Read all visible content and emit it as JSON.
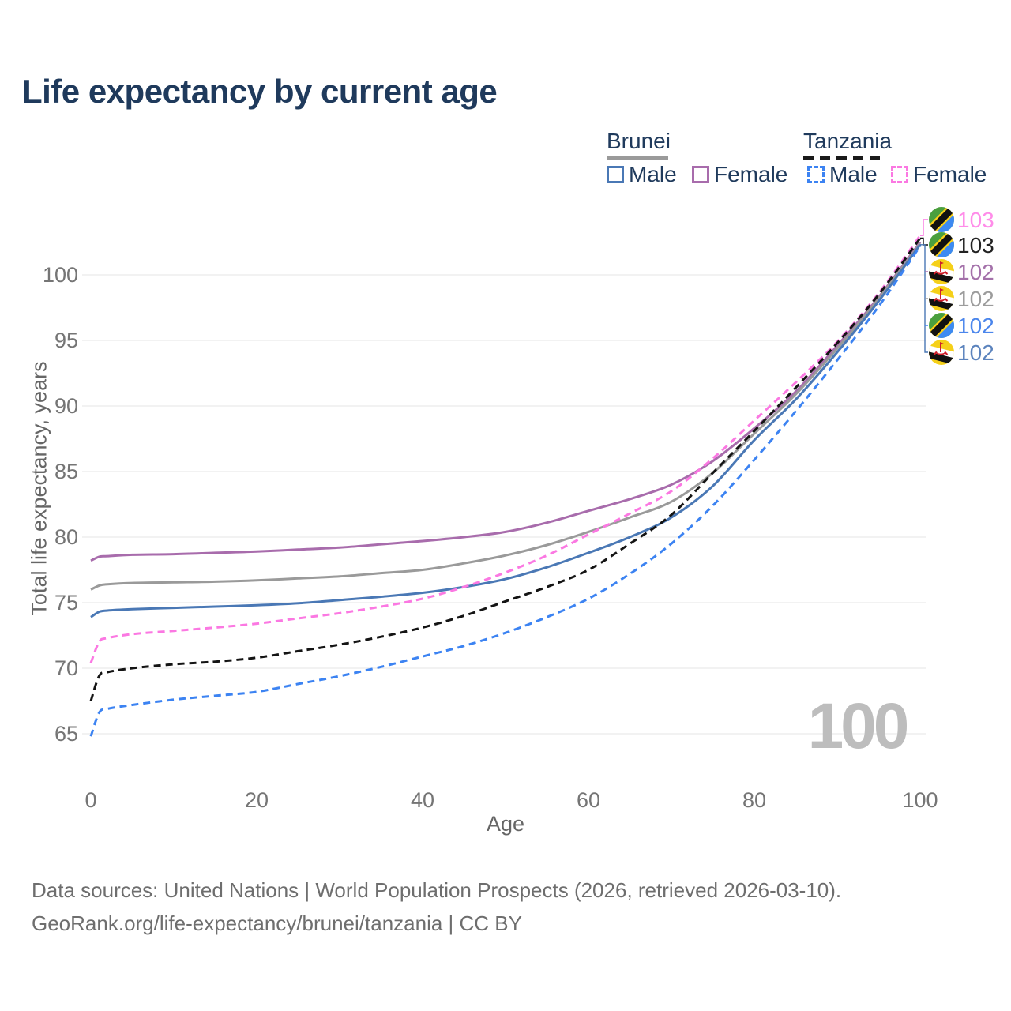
{
  "title": "Life expectancy by current age",
  "legend": {
    "groups": [
      {
        "label": "Brunei",
        "line_style": "solid",
        "underline_color": "#9a9a9a",
        "items": [
          {
            "label": "Male",
            "color": "#4a78b5"
          },
          {
            "label": "Female",
            "color": "#a86cac"
          }
        ]
      },
      {
        "label": "Tanzania",
        "line_style": "dashed",
        "underline_color": "#1a1a1a",
        "items": [
          {
            "label": "Male",
            "color": "#3c83f2"
          },
          {
            "label": "Female",
            "color": "#fb78e2"
          }
        ]
      }
    ]
  },
  "footer": {
    "line1": "Data sources: United Nations | World Population Prospects (2026, retrieved 2026-03-10).",
    "line2": "GeoRank.org/life-expectancy/brunei/tanzania | CC BY"
  },
  "chart_data": {
    "type": "line",
    "title": "Life expectancy by current age",
    "xlabel": "Age",
    "ylabel": "Total life expectancy, years",
    "x": [
      0,
      1,
      2,
      5,
      10,
      15,
      20,
      25,
      30,
      35,
      40,
      45,
      50,
      55,
      60,
      65,
      70,
      75,
      80,
      85,
      90,
      95,
      100
    ],
    "series": [
      {
        "name": "Brunei Female",
        "country": "Brunei",
        "sex": "Female",
        "color": "#a86cac",
        "dash": false,
        "values": [
          78.2,
          78.5,
          78.55,
          78.65,
          78.7,
          78.8,
          78.9,
          79.05,
          79.2,
          79.45,
          79.7,
          80.0,
          80.4,
          81.1,
          82.0,
          82.9,
          84.0,
          85.8,
          88.3,
          91.1,
          94.6,
          98.3,
          102.5
        ]
      },
      {
        "name": "Brunei Both sexes",
        "country": "Brunei",
        "sex": "Both sexes",
        "color": "#9a9a9a",
        "dash": false,
        "values": [
          76.0,
          76.3,
          76.4,
          76.5,
          76.55,
          76.6,
          76.7,
          76.85,
          77.0,
          77.25,
          77.5,
          78.0,
          78.6,
          79.4,
          80.4,
          81.5,
          82.7,
          84.9,
          87.9,
          90.9,
          94.4,
          98.2,
          102.4
        ]
      },
      {
        "name": "Brunei Male",
        "country": "Brunei",
        "sex": "Male",
        "color": "#4a78b5",
        "dash": false,
        "values": [
          73.9,
          74.3,
          74.4,
          74.5,
          74.6,
          74.7,
          74.8,
          74.95,
          75.2,
          75.45,
          75.75,
          76.2,
          76.8,
          77.7,
          78.8,
          80.0,
          81.5,
          83.9,
          87.4,
          90.5,
          94.1,
          98.0,
          102.3
        ]
      },
      {
        "name": "Tanzania Female",
        "country": "Tanzania",
        "sex": "Female",
        "color": "#fb78e2",
        "dash": true,
        "values": [
          70.4,
          72.0,
          72.3,
          72.6,
          72.85,
          73.1,
          73.4,
          73.8,
          74.2,
          74.7,
          75.3,
          76.2,
          77.3,
          78.6,
          80.2,
          81.8,
          83.5,
          86.0,
          88.9,
          91.8,
          94.9,
          98.6,
          103.0
        ]
      },
      {
        "name": "Tanzania Both sexes",
        "country": "Tanzania",
        "sex": "Both sexes",
        "color": "#141414",
        "dash": true,
        "values": [
          67.5,
          69.4,
          69.7,
          70.0,
          70.3,
          70.5,
          70.8,
          71.3,
          71.8,
          72.4,
          73.1,
          74.0,
          75.1,
          76.2,
          77.5,
          79.5,
          81.7,
          84.9,
          88.1,
          91.4,
          94.8,
          98.5,
          102.8
        ]
      },
      {
        "name": "Tanzania Male",
        "country": "Tanzania",
        "sex": "Male",
        "color": "#3c83f2",
        "dash": true,
        "values": [
          64.8,
          66.6,
          66.9,
          67.2,
          67.6,
          67.9,
          68.2,
          68.8,
          69.4,
          70.1,
          70.9,
          71.7,
          72.7,
          73.9,
          75.3,
          77.2,
          79.5,
          82.4,
          85.9,
          89.6,
          93.5,
          97.6,
          102.2
        ]
      }
    ],
    "xticks": [
      0,
      20,
      40,
      60,
      80,
      100
    ],
    "yticks": [
      65,
      70,
      75,
      80,
      85,
      90,
      95,
      100
    ],
    "xlim": [
      0,
      100
    ],
    "ylim": [
      63.5,
      104.5
    ],
    "grid": "horizontal",
    "grid_color": "#e9e9e9",
    "watermark": "100",
    "watermark_color": "#bdbdbd",
    "legend_position": "top-right",
    "end_labels": [
      {
        "value": "103",
        "flag": "tanzania",
        "series": "Tanzania Female",
        "text_color": "#ff8ce9"
      },
      {
        "value": "103",
        "flag": "tanzania",
        "series": "Tanzania Both sexes",
        "text_color": "#222222"
      },
      {
        "value": "102",
        "flag": "brunei",
        "series": "Brunei Female",
        "text_color": "#a471aa"
      },
      {
        "value": "102",
        "flag": "brunei",
        "series": "Brunei Both sexes",
        "text_color": "#9c9c9c"
      },
      {
        "value": "102",
        "flag": "tanzania",
        "series": "Tanzania Male",
        "text_color": "#4b86ec"
      },
      {
        "value": "102",
        "flag": "brunei",
        "series": "Brunei Male",
        "text_color": "#5b83bd"
      }
    ]
  }
}
